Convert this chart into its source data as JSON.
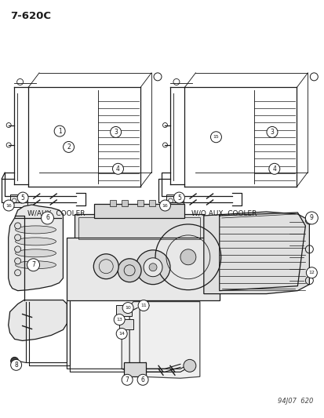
{
  "title": "7-620C",
  "watermark": "94J07  620",
  "bg_color": "#ffffff",
  "line_color": "#1a1a1a",
  "fig_width": 4.14,
  "fig_height": 5.33,
  "dpi": 100,
  "top_left_caption": "W/AUX  COOLER",
  "top_right_caption": "W/O AUX  COOLER"
}
